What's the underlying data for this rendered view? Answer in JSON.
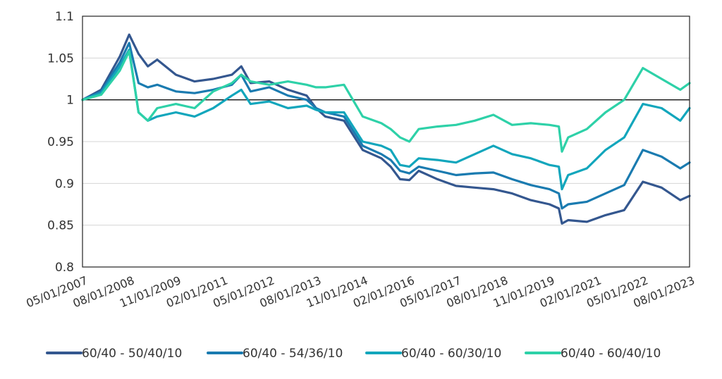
{
  "chart_data": {
    "type": "line",
    "title": "",
    "xlabel": "",
    "ylabel": "",
    "ylim": [
      0.8,
      1.1
    ],
    "y_ticks": [
      "0.8",
      "0.85",
      "0.9",
      "0.95",
      "1",
      "1.05",
      "1.1"
    ],
    "x_ticks": [
      "05/01/2007",
      "08/01/2008",
      "11/01/2009",
      "02/01/2011",
      "05/01/2012",
      "08/01/2013",
      "11/01/2014",
      "02/01/2016",
      "05/01/2017",
      "08/01/2018",
      "11/01/2019",
      "02/01/2021",
      "05/01/2022",
      "08/01/2023"
    ],
    "grid": "horizontal",
    "legend_position": "bottom",
    "x": [
      "05/01/2007",
      "11/01/2007",
      "05/01/2008",
      "08/01/2008",
      "11/01/2008",
      "02/01/2009",
      "05/01/2009",
      "11/01/2009",
      "05/01/2010",
      "11/01/2010",
      "05/01/2011",
      "08/01/2011",
      "11/01/2011",
      "05/01/2012",
      "11/01/2012",
      "05/01/2013",
      "08/01/2013",
      "11/01/2013",
      "05/01/2014",
      "11/01/2014",
      "05/01/2015",
      "08/01/2015",
      "11/01/2015",
      "02/01/2016",
      "05/01/2016",
      "11/01/2016",
      "05/01/2017",
      "11/01/2017",
      "05/01/2018",
      "11/01/2018",
      "05/01/2019",
      "11/01/2019",
      "02/01/2020",
      "03/01/2020",
      "05/01/2020",
      "11/01/2020",
      "05/01/2021",
      "11/01/2021",
      "05/01/2022",
      "11/01/2022",
      "05/01/2023",
      "08/01/2023"
    ],
    "series": [
      {
        "name": "60/40 - 50/40/10",
        "color": "#34578f",
        "values": [
          1.0,
          1.012,
          1.052,
          1.078,
          1.055,
          1.04,
          1.048,
          1.03,
          1.022,
          1.025,
          1.03,
          1.04,
          1.02,
          1.022,
          1.012,
          1.005,
          0.99,
          0.98,
          0.975,
          0.94,
          0.93,
          0.92,
          0.905,
          0.904,
          0.915,
          0.905,
          0.897,
          0.895,
          0.893,
          0.888,
          0.88,
          0.875,
          0.87,
          0.852,
          0.856,
          0.854,
          0.862,
          0.868,
          0.902,
          0.895,
          0.88,
          0.885
        ]
      },
      {
        "name": "60/40 - 54/36/10",
        "color": "#1a7bb0",
        "values": [
          1.0,
          1.01,
          1.045,
          1.068,
          1.02,
          1.015,
          1.018,
          1.01,
          1.008,
          1.012,
          1.018,
          1.03,
          1.01,
          1.015,
          1.005,
          1.0,
          0.99,
          0.985,
          0.98,
          0.945,
          0.935,
          0.928,
          0.915,
          0.912,
          0.92,
          0.915,
          0.91,
          0.912,
          0.913,
          0.905,
          0.898,
          0.893,
          0.888,
          0.87,
          0.875,
          0.878,
          0.888,
          0.898,
          0.94,
          0.932,
          0.918,
          0.925
        ]
      },
      {
        "name": "60/40 - 60/30/10",
        "color": "#12a6bc",
        "values": [
          1.0,
          1.008,
          1.04,
          1.06,
          0.985,
          0.975,
          0.98,
          0.985,
          0.98,
          0.99,
          1.005,
          1.012,
          0.995,
          0.998,
          0.99,
          0.993,
          0.988,
          0.985,
          0.985,
          0.95,
          0.945,
          0.94,
          0.922,
          0.92,
          0.93,
          0.928,
          0.925,
          0.935,
          0.945,
          0.935,
          0.93,
          0.922,
          0.92,
          0.893,
          0.91,
          0.918,
          0.94,
          0.955,
          0.995,
          0.99,
          0.975,
          0.99
        ]
      },
      {
        "name": "60/40 - 60/40/10",
        "color": "#2ed1a8",
        "values": [
          1.0,
          1.006,
          1.035,
          1.058,
          0.985,
          0.975,
          0.99,
          0.995,
          0.99,
          1.01,
          1.02,
          1.03,
          1.022,
          1.018,
          1.022,
          1.018,
          1.015,
          1.015,
          1.018,
          0.98,
          0.972,
          0.965,
          0.955,
          0.95,
          0.965,
          0.968,
          0.97,
          0.975,
          0.982,
          0.97,
          0.972,
          0.97,
          0.968,
          0.938,
          0.955,
          0.965,
          0.985,
          1.0,
          1.038,
          1.025,
          1.012,
          1.02
        ]
      }
    ]
  }
}
